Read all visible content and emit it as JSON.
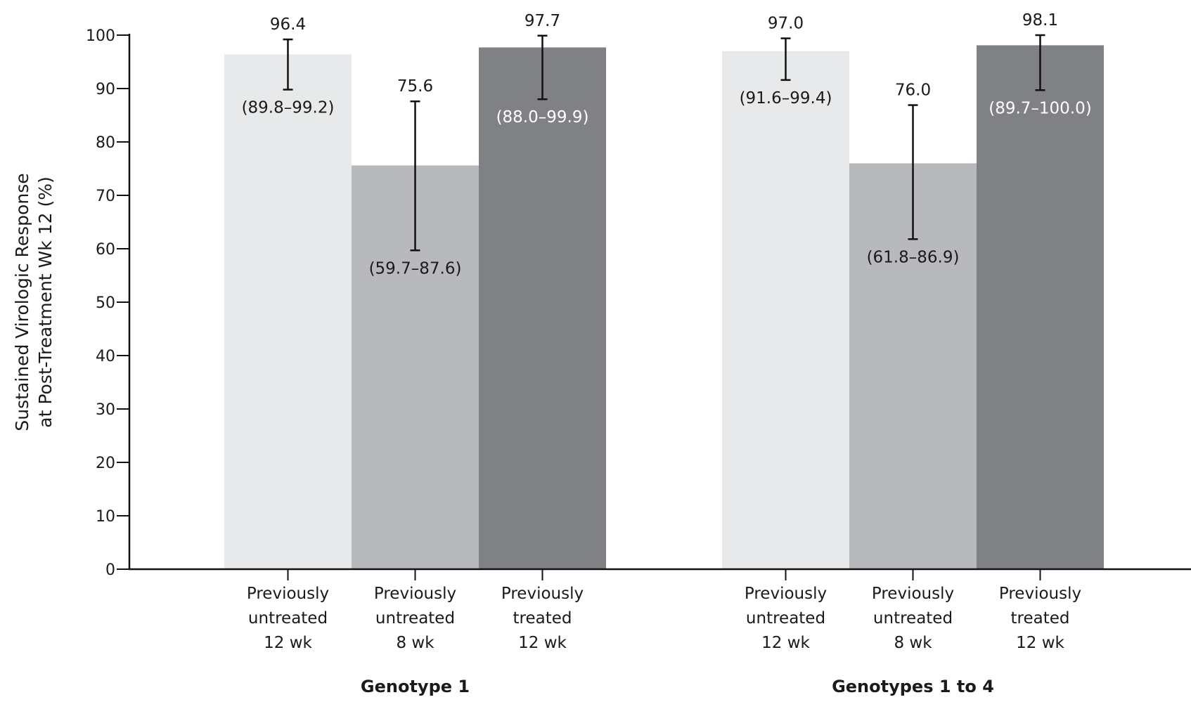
{
  "chart_data": {
    "type": "bar",
    "ylabel": [
      "Sustained Virologic Response",
      "at Post-Treatment Wk 12 (%)"
    ],
    "ylim": [
      0,
      100
    ],
    "yticks": [
      0,
      10,
      20,
      30,
      40,
      50,
      60,
      70,
      80,
      90,
      100
    ],
    "grid": false,
    "series_colors": [
      "#e8e9ea",
      "#b8b9bc",
      "#7f8184"
    ],
    "ci_text_colors": [
      "#1a1a1a",
      "#1a1a1a",
      "#ffffff"
    ],
    "groups": [
      {
        "label": "Genotype 1",
        "bars": [
          {
            "category": [
              "Previously",
              "untreated",
              "12 wk"
            ],
            "value": 96.4,
            "value_label": "96.4",
            "ci": [
              89.8,
              99.2
            ],
            "ci_label": "(89.8–99.2)"
          },
          {
            "category": [
              "Previously",
              "untreated",
              "8 wk"
            ],
            "value": 75.6,
            "value_label": "75.6",
            "ci": [
              59.7,
              87.6
            ],
            "ci_label": "(59.7–87.6)"
          },
          {
            "category": [
              "Previously",
              "treated",
              "12 wk"
            ],
            "value": 97.7,
            "value_label": "97.7",
            "ci": [
              88.0,
              99.9
            ],
            "ci_label": "(88.0–99.9)"
          }
        ]
      },
      {
        "label": "Genotypes 1 to 4",
        "bars": [
          {
            "category": [
              "Previously",
              "untreated",
              "12 wk"
            ],
            "value": 97.0,
            "value_label": "97.0",
            "ci": [
              91.6,
              99.4
            ],
            "ci_label": "(91.6–99.4)"
          },
          {
            "category": [
              "Previously",
              "untreated",
              "8 wk"
            ],
            "value": 76.0,
            "value_label": "76.0",
            "ci": [
              61.8,
              86.9
            ],
            "ci_label": "(61.8–86.9)"
          },
          {
            "category": [
              "Previously",
              "treated",
              "12 wk"
            ],
            "value": 98.1,
            "value_label": "98.1",
            "ci": [
              89.7,
              100.0
            ],
            "ci_label": "(89.7–100.0)"
          }
        ]
      }
    ]
  }
}
